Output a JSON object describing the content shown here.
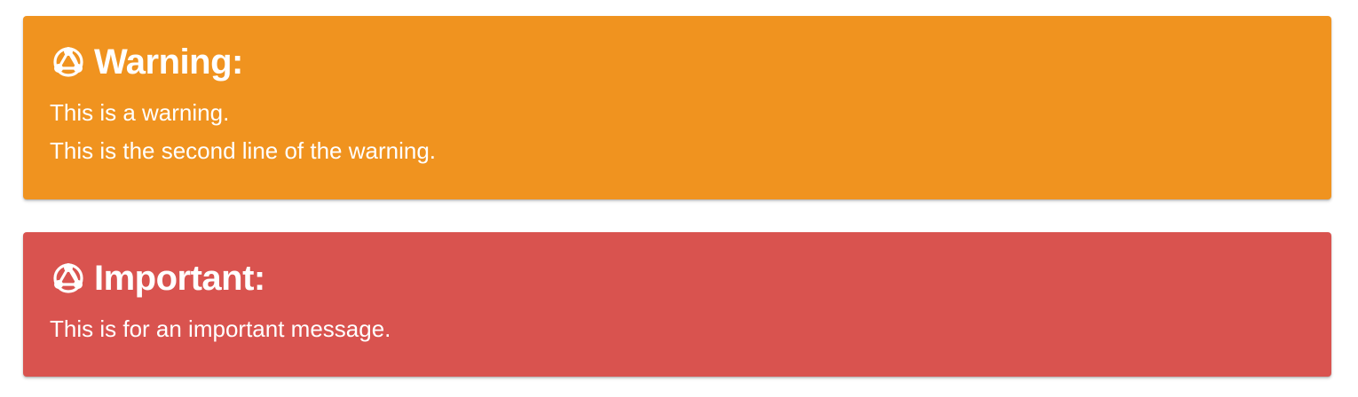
{
  "colors": {
    "warning_bg": "#f0931f",
    "important_bg": "#d9534f",
    "text": "#ffffff"
  },
  "callouts": [
    {
      "type": "warning",
      "icon": "network-icon",
      "title": "Warning:",
      "lines": [
        "This is a warning.",
        "This is the second line of the warning."
      ]
    },
    {
      "type": "important",
      "icon": "network-icon",
      "title": "Important:",
      "lines": [
        "This is for an important message."
      ]
    }
  ]
}
